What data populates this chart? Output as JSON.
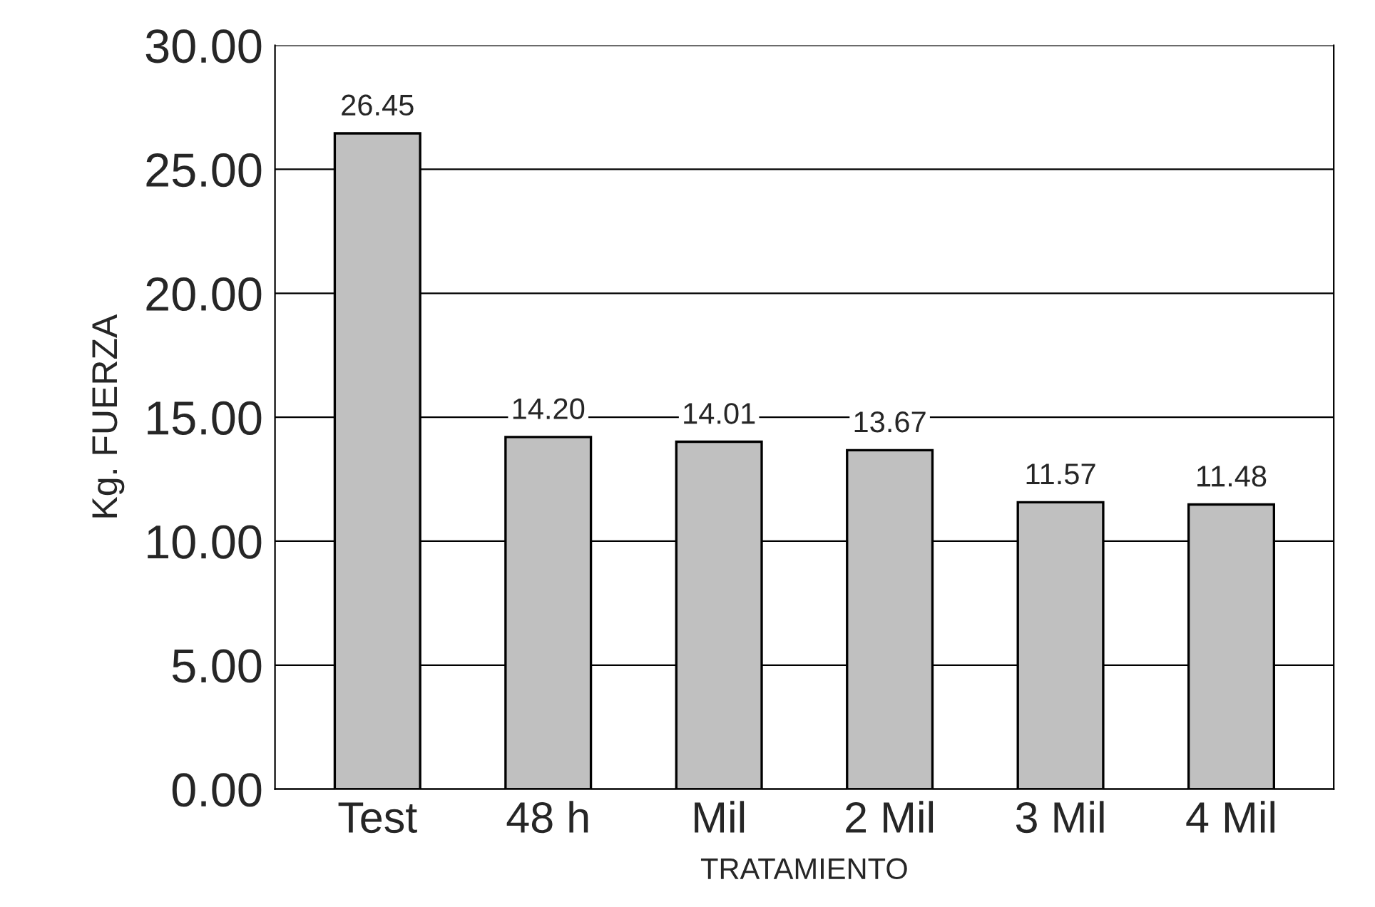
{
  "chart_data": {
    "type": "bar",
    "xlabel": "TRATAMIENTO",
    "ylabel": "Kg. FUERZA",
    "categories": [
      "Test",
      "48 h",
      "Mil",
      "2 Mil",
      "3 Mil",
      "4 Mil"
    ],
    "values": [
      26.45,
      14.2,
      14.01,
      13.67,
      11.57,
      11.48
    ],
    "value_labels": [
      "26.45",
      "14.20",
      "14.01",
      "13.67",
      "11.57",
      "11.48"
    ],
    "color": "#c0c0c0",
    "ylim": [
      0,
      30
    ],
    "yticks": [
      {
        "value": 0,
        "label": "0.00"
      },
      {
        "value": 5,
        "label": "5.00"
      },
      {
        "value": 10,
        "label": "10.00"
      },
      {
        "value": 15,
        "label": "15.00"
      },
      {
        "value": 20,
        "label": "20.00"
      },
      {
        "value": 25,
        "label": "25.00"
      },
      {
        "value": 30,
        "label": "30.00"
      }
    ],
    "grid": "y"
  }
}
